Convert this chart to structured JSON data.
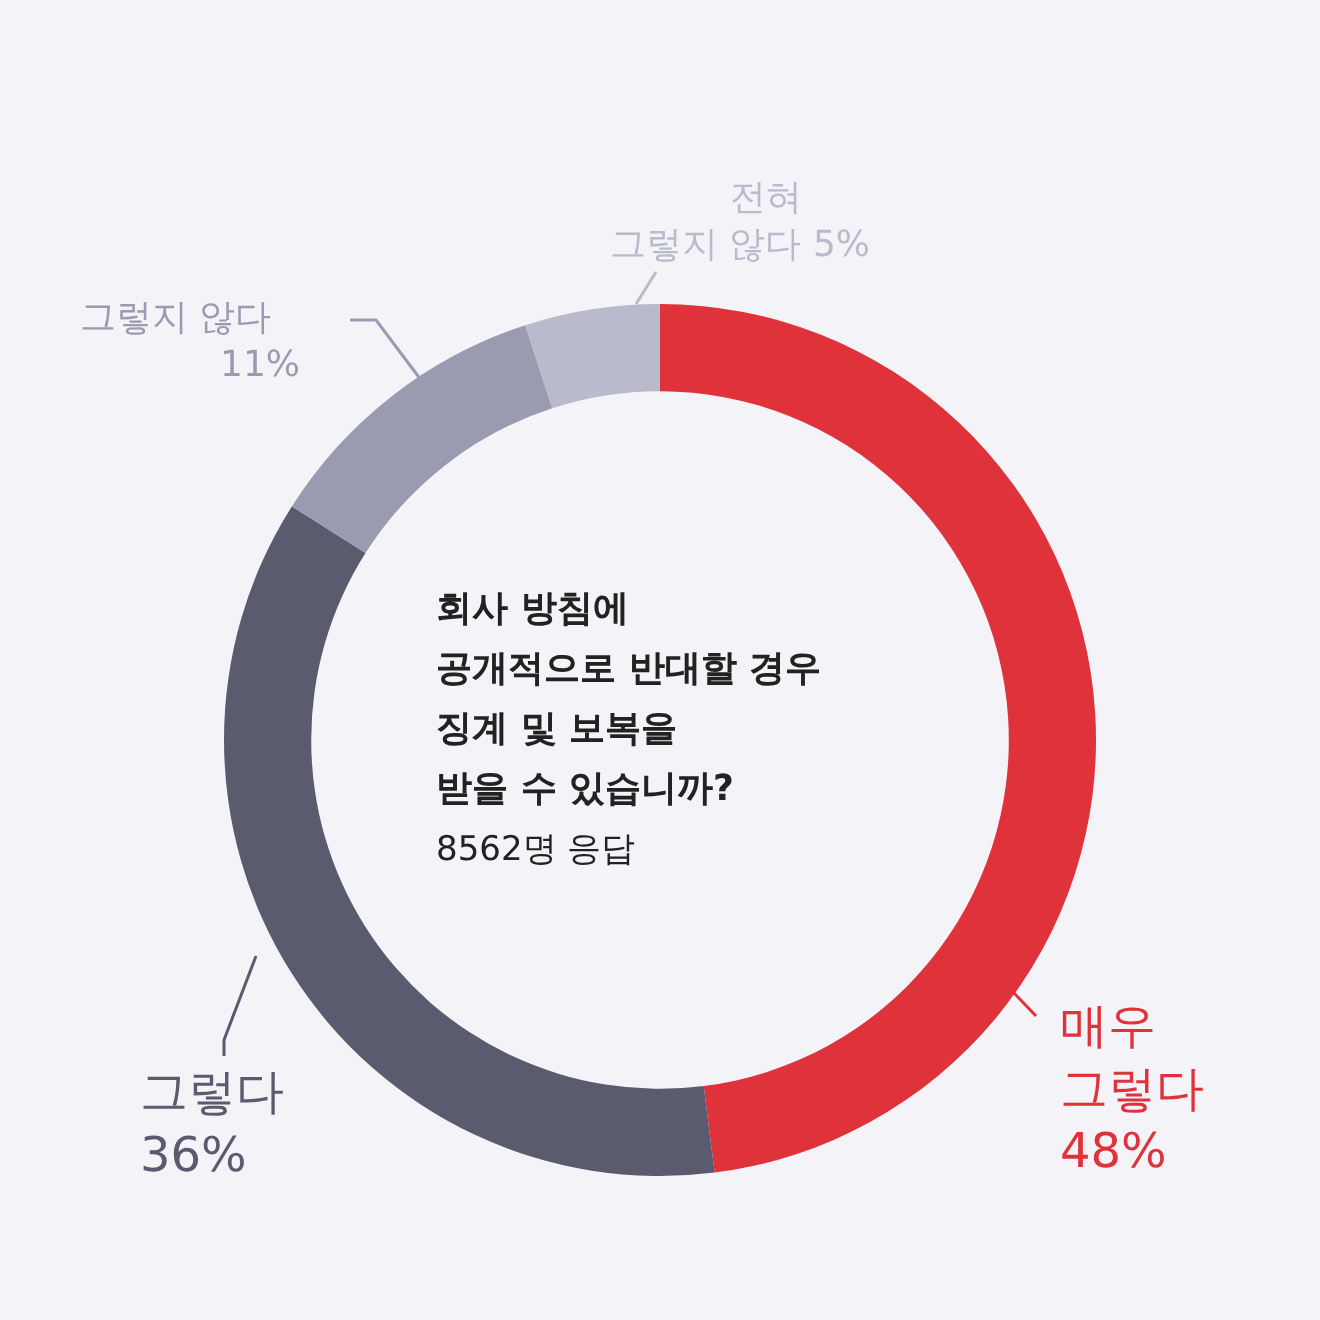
{
  "chart_data": {
    "type": "donut",
    "title": "회사 방침에\n공개적으로 반대할 경우\n징계 및 보복을\n받을 수 있습니까?",
    "subtitle": "8562명 응답",
    "categories": [
      "매우 그렇다",
      "그렇다",
      "그렇지 않다",
      "전혀 그렇지 않다"
    ],
    "values": [
      48,
      36,
      11,
      5
    ],
    "value_labels": [
      "48%",
      "36%",
      "11%",
      "5%"
    ],
    "colors": [
      "#e0323a",
      "#5a5b6e",
      "#9a9bb0",
      "#b9bacb"
    ],
    "legend": false
  }
}
